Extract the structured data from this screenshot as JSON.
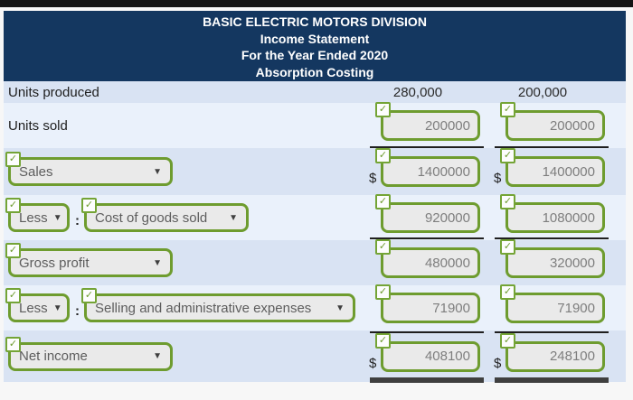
{
  "icons": {
    "check": "✓",
    "dropdown_arrow": "▼"
  },
  "header": {
    "company": "BASIC ELECTRIC MOTORS DIVISION",
    "statement": "Income Statement",
    "period": "For the Year Ended 2020",
    "method": "Absorption Costing"
  },
  "rows": {
    "units_produced": {
      "label": "Units produced",
      "col1": "280,000",
      "col2": "200,000"
    },
    "units_sold": {
      "label": "Units sold",
      "col1": "200000",
      "col2": "200000"
    },
    "sales": {
      "select": "Sales",
      "currency": "$",
      "col1": "1400000",
      "col2": "1400000"
    },
    "cogs": {
      "less": "Less",
      "colon": ":",
      "select": "Cost of goods sold",
      "col1": "920000",
      "col2": "1080000"
    },
    "gross_profit": {
      "select": "Gross profit",
      "col1": "480000",
      "col2": "320000"
    },
    "sga": {
      "less": "Less",
      "colon": ":",
      "select": "Selling and administrative expenses",
      "col1": "71900",
      "col2": "71900"
    },
    "net_income": {
      "select": "Net income",
      "currency": "$",
      "col1": "408100",
      "col2": "248100"
    }
  },
  "colors": {
    "accent_green": "#6e9c2f",
    "header_navy": "#143760",
    "row_dark": "#d9e3f3",
    "row_light": "#eaf1fb",
    "input_bg": "#eaeaea",
    "rule_dark": "#1f1f1f"
  }
}
